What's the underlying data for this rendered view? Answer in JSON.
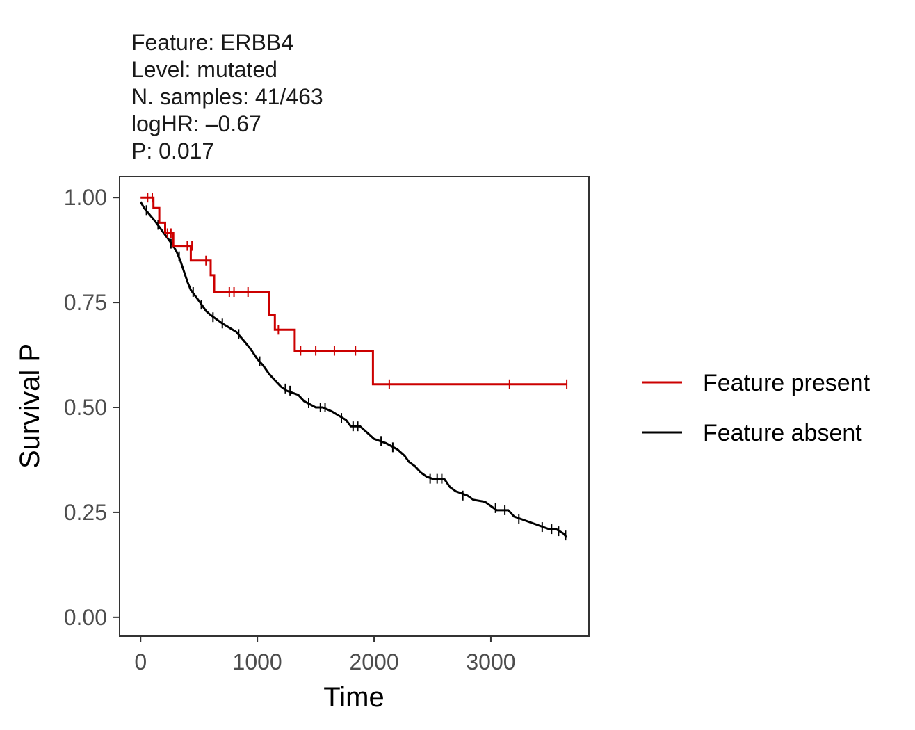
{
  "chart_data": {
    "type": "line",
    "subtype": "kaplan-meier",
    "title_lines": [
      "Feature: ERBB4",
      "Level: mutated",
      "N. samples: 41/463",
      "logHR: –0.67",
      "P: 0.017"
    ],
    "xlabel": "Time",
    "ylabel": "Survival P",
    "xlim": [
      -180,
      3840
    ],
    "ylim": [
      -0.045,
      1.05
    ],
    "xticks": [
      0,
      1000,
      2000,
      3000
    ],
    "xtick_labels": [
      "0",
      "1000",
      "2000",
      "3000"
    ],
    "yticks": [
      0,
      0.25,
      0.5,
      0.75,
      1.0
    ],
    "ytick_labels": [
      "0.00",
      "0.25",
      "0.50",
      "0.75",
      "1.00"
    ],
    "grid": false,
    "legend_position": "right",
    "series": [
      {
        "name": "Feature present",
        "color": "#cc0000",
        "points": [
          [
            0,
            1.0
          ],
          [
            110,
            1.0
          ],
          [
            110,
            0.975
          ],
          [
            160,
            0.975
          ],
          [
            160,
            0.94
          ],
          [
            210,
            0.94
          ],
          [
            210,
            0.915
          ],
          [
            280,
            0.915
          ],
          [
            280,
            0.885
          ],
          [
            430,
            0.885
          ],
          [
            430,
            0.85
          ],
          [
            600,
            0.85
          ],
          [
            600,
            0.815
          ],
          [
            630,
            0.815
          ],
          [
            630,
            0.775
          ],
          [
            1100,
            0.775
          ],
          [
            1100,
            0.72
          ],
          [
            1150,
            0.72
          ],
          [
            1150,
            0.685
          ],
          [
            1320,
            0.685
          ],
          [
            1320,
            0.635
          ],
          [
            1990,
            0.635
          ],
          [
            1990,
            0.555
          ],
          [
            3650,
            0.555
          ]
        ],
        "censor": [
          [
            60,
            1.0
          ],
          [
            100,
            1.0
          ],
          [
            230,
            0.915
          ],
          [
            260,
            0.915
          ],
          [
            400,
            0.885
          ],
          [
            440,
            0.885
          ],
          [
            560,
            0.85
          ],
          [
            760,
            0.775
          ],
          [
            800,
            0.775
          ],
          [
            920,
            0.775
          ],
          [
            1180,
            0.685
          ],
          [
            1370,
            0.635
          ],
          [
            1500,
            0.635
          ],
          [
            1660,
            0.635
          ],
          [
            1840,
            0.635
          ],
          [
            2130,
            0.555
          ],
          [
            3160,
            0.555
          ],
          [
            3650,
            0.555
          ]
        ]
      },
      {
        "name": "Feature absent",
        "color": "#000000",
        "points": [
          [
            0,
            0.99
          ],
          [
            30,
            0.975
          ],
          [
            60,
            0.965
          ],
          [
            90,
            0.955
          ],
          [
            120,
            0.945
          ],
          [
            160,
            0.93
          ],
          [
            200,
            0.915
          ],
          [
            240,
            0.9
          ],
          [
            280,
            0.885
          ],
          [
            310,
            0.87
          ],
          [
            340,
            0.85
          ],
          [
            370,
            0.825
          ],
          [
            400,
            0.8
          ],
          [
            430,
            0.78
          ],
          [
            470,
            0.765
          ],
          [
            510,
            0.75
          ],
          [
            560,
            0.73
          ],
          [
            600,
            0.72
          ],
          [
            650,
            0.71
          ],
          [
            700,
            0.7
          ],
          [
            760,
            0.69
          ],
          [
            820,
            0.68
          ],
          [
            880,
            0.66
          ],
          [
            940,
            0.64
          ],
          [
            1000,
            0.615
          ],
          [
            1050,
            0.6
          ],
          [
            1100,
            0.58
          ],
          [
            1150,
            0.565
          ],
          [
            1200,
            0.55
          ],
          [
            1250,
            0.54
          ],
          [
            1350,
            0.53
          ],
          [
            1400,
            0.515
          ],
          [
            1500,
            0.5
          ],
          [
            1560,
            0.5
          ],
          [
            1640,
            0.49
          ],
          [
            1700,
            0.48
          ],
          [
            1760,
            0.47
          ],
          [
            1800,
            0.455
          ],
          [
            1880,
            0.455
          ],
          [
            1940,
            0.44
          ],
          [
            2000,
            0.425
          ],
          [
            2100,
            0.415
          ],
          [
            2200,
            0.4
          ],
          [
            2260,
            0.385
          ],
          [
            2300,
            0.37
          ],
          [
            2350,
            0.36
          ],
          [
            2400,
            0.345
          ],
          [
            2450,
            0.335
          ],
          [
            2500,
            0.33
          ],
          [
            2600,
            0.33
          ],
          [
            2650,
            0.31
          ],
          [
            2700,
            0.3
          ],
          [
            2800,
            0.29
          ],
          [
            2850,
            0.28
          ],
          [
            2950,
            0.275
          ],
          [
            3000,
            0.265
          ],
          [
            3050,
            0.255
          ],
          [
            3150,
            0.255
          ],
          [
            3200,
            0.24
          ],
          [
            3300,
            0.23
          ],
          [
            3350,
            0.225
          ],
          [
            3400,
            0.22
          ],
          [
            3500,
            0.21
          ],
          [
            3560,
            0.21
          ],
          [
            3620,
            0.2
          ],
          [
            3650,
            0.19
          ]
        ],
        "censor": [
          [
            50,
            0.97
          ],
          [
            150,
            0.935
          ],
          [
            260,
            0.89
          ],
          [
            330,
            0.86
          ],
          [
            450,
            0.775
          ],
          [
            520,
            0.745
          ],
          [
            620,
            0.715
          ],
          [
            700,
            0.7
          ],
          [
            840,
            0.675
          ],
          [
            1020,
            0.61
          ],
          [
            1240,
            0.545
          ],
          [
            1280,
            0.54
          ],
          [
            1440,
            0.51
          ],
          [
            1540,
            0.5
          ],
          [
            1580,
            0.5
          ],
          [
            1720,
            0.475
          ],
          [
            1820,
            0.455
          ],
          [
            1860,
            0.455
          ],
          [
            2060,
            0.42
          ],
          [
            2160,
            0.405
          ],
          [
            2480,
            0.33
          ],
          [
            2540,
            0.33
          ],
          [
            2580,
            0.33
          ],
          [
            2760,
            0.29
          ],
          [
            3040,
            0.26
          ],
          [
            3120,
            0.255
          ],
          [
            3240,
            0.235
          ],
          [
            3440,
            0.215
          ],
          [
            3520,
            0.21
          ],
          [
            3580,
            0.205
          ],
          [
            3640,
            0.195
          ]
        ]
      }
    ]
  }
}
